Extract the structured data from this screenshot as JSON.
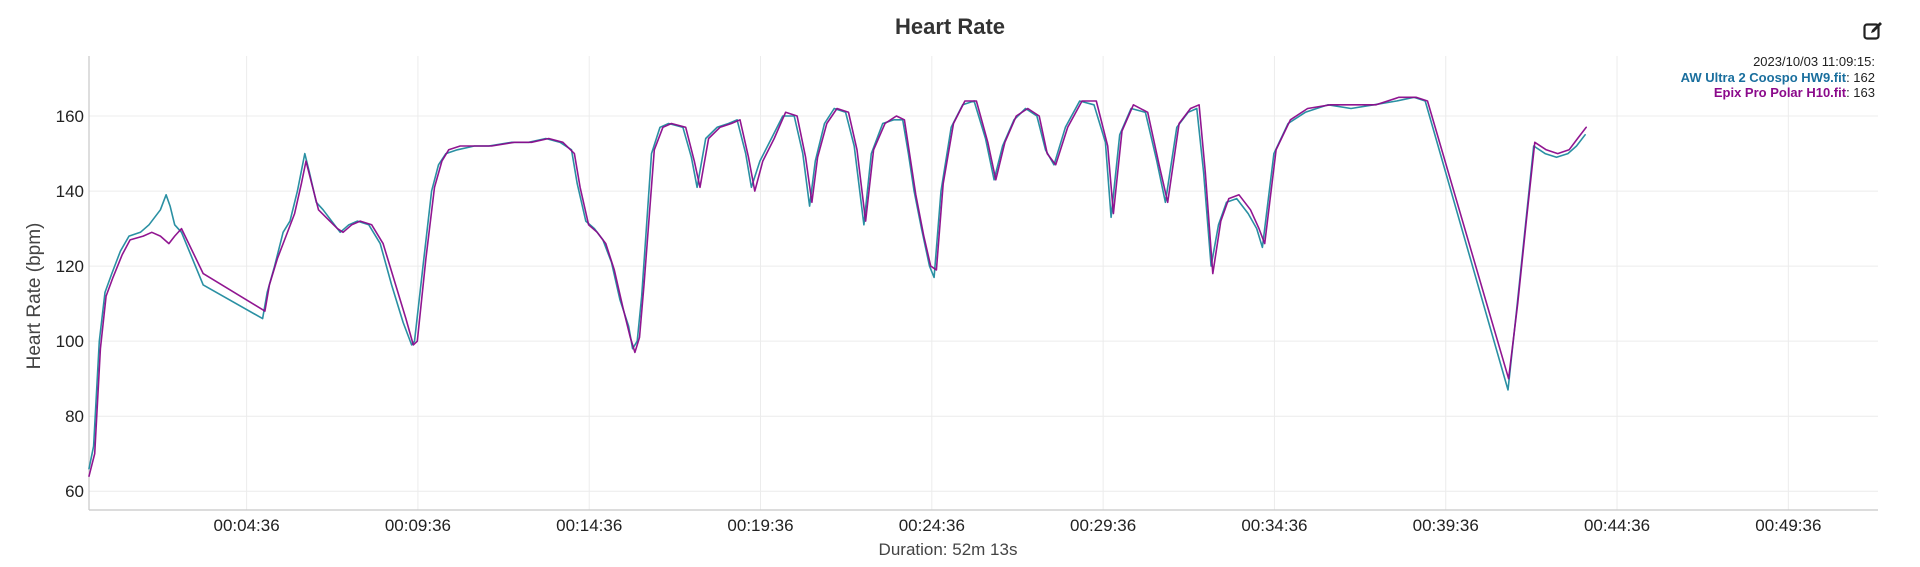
{
  "chart_data": {
    "type": "line",
    "title": "Heart Rate",
    "ylabel": "Heart Rate (bpm)",
    "xlabel": "Duration: 52m 13s",
    "duration_seconds": 3133,
    "xlim_seconds": [
      0,
      3133
    ],
    "ylim": [
      55,
      176
    ],
    "y_ticks": [
      60,
      80,
      100,
      120,
      140,
      160
    ],
    "x_ticks": [
      {
        "seconds": 276,
        "label": "00:04:36"
      },
      {
        "seconds": 576,
        "label": "00:09:36"
      },
      {
        "seconds": 876,
        "label": "00:14:36"
      },
      {
        "seconds": 1176,
        "label": "00:19:36"
      },
      {
        "seconds": 1476,
        "label": "00:24:36"
      },
      {
        "seconds": 1776,
        "label": "00:29:36"
      },
      {
        "seconds": 2076,
        "label": "00:34:36"
      },
      {
        "seconds": 2376,
        "label": "00:39:36"
      },
      {
        "seconds": 2676,
        "label": "00:44:36"
      },
      {
        "seconds": 2976,
        "label": "00:49:36"
      }
    ],
    "grid": true,
    "legend": {
      "placement": "top-right",
      "timestamp": "2023/10/03 11:09:15:",
      "items": [
        {
          "name": "AW Ultra 2 Coospo HW9.fit",
          "value": "162",
          "color": "#1a6f9e"
        },
        {
          "name": "Epix Pro Polar H10.fit",
          "value": "163",
          "color": "#8b0a8b"
        }
      ]
    },
    "series": [
      {
        "name": "AW Ultra 2 Coospo HW9.fit",
        "color": "#1f8a9e",
        "points": [
          [
            0,
            66
          ],
          [
            8,
            72
          ],
          [
            18,
            100
          ],
          [
            28,
            113
          ],
          [
            40,
            118
          ],
          [
            55,
            124
          ],
          [
            70,
            128
          ],
          [
            90,
            129
          ],
          [
            105,
            131
          ],
          [
            115,
            133
          ],
          [
            125,
            135
          ],
          [
            135,
            139
          ],
          [
            142,
            136
          ],
          [
            150,
            131
          ],
          [
            162,
            129
          ],
          [
            200,
            115
          ],
          [
            304,
            106
          ],
          [
            312,
            113
          ],
          [
            325,
            120
          ],
          [
            340,
            129
          ],
          [
            352,
            132
          ],
          [
            365,
            140
          ],
          [
            378,
            150
          ],
          [
            386,
            145
          ],
          [
            398,
            137
          ],
          [
            410,
            135
          ],
          [
            430,
            131
          ],
          [
            440,
            129
          ],
          [
            455,
            131
          ],
          [
            470,
            132
          ],
          [
            490,
            131
          ],
          [
            510,
            126
          ],
          [
            530,
            115
          ],
          [
            550,
            105
          ],
          [
            565,
            99
          ],
          [
            570,
            100
          ],
          [
            585,
            120
          ],
          [
            600,
            140
          ],
          [
            612,
            147
          ],
          [
            625,
            150
          ],
          [
            645,
            151
          ],
          [
            675,
            152
          ],
          [
            700,
            152
          ],
          [
            740,
            153
          ],
          [
            770,
            153
          ],
          [
            800,
            154
          ],
          [
            825,
            153
          ],
          [
            845,
            151
          ],
          [
            855,
            142
          ],
          [
            870,
            132
          ],
          [
            885,
            130
          ],
          [
            900,
            127
          ],
          [
            915,
            121
          ],
          [
            930,
            111
          ],
          [
            945,
            104
          ],
          [
            952,
            98
          ],
          [
            960,
            100
          ],
          [
            968,
            112
          ],
          [
            985,
            150
          ],
          [
            1000,
            157
          ],
          [
            1015,
            158
          ],
          [
            1040,
            157
          ],
          [
            1055,
            149
          ],
          [
            1065,
            141
          ],
          [
            1080,
            154
          ],
          [
            1100,
            157
          ],
          [
            1120,
            158
          ],
          [
            1135,
            159
          ],
          [
            1150,
            150
          ],
          [
            1160,
            141
          ],
          [
            1175,
            148
          ],
          [
            1195,
            154
          ],
          [
            1215,
            160
          ],
          [
            1235,
            160
          ],
          [
            1250,
            150
          ],
          [
            1262,
            136
          ],
          [
            1272,
            148
          ],
          [
            1288,
            158
          ],
          [
            1305,
            162
          ],
          [
            1325,
            161
          ],
          [
            1340,
            152
          ],
          [
            1357,
            131
          ],
          [
            1370,
            150
          ],
          [
            1390,
            158
          ],
          [
            1410,
            159
          ],
          [
            1425,
            159
          ],
          [
            1435,
            150
          ],
          [
            1445,
            140
          ],
          [
            1458,
            130
          ],
          [
            1472,
            120
          ],
          [
            1480,
            117
          ],
          [
            1492,
            140
          ],
          [
            1510,
            157
          ],
          [
            1530,
            163
          ],
          [
            1550,
            164
          ],
          [
            1570,
            154
          ],
          [
            1585,
            143
          ],
          [
            1600,
            152
          ],
          [
            1620,
            159
          ],
          [
            1640,
            162
          ],
          [
            1660,
            160
          ],
          [
            1675,
            151
          ],
          [
            1690,
            147
          ],
          [
            1710,
            157
          ],
          [
            1735,
            164
          ],
          [
            1760,
            163
          ],
          [
            1780,
            153
          ],
          [
            1790,
            133
          ],
          [
            1805,
            155
          ],
          [
            1825,
            162
          ],
          [
            1850,
            161
          ],
          [
            1870,
            148
          ],
          [
            1885,
            137
          ],
          [
            1905,
            157
          ],
          [
            1925,
            161
          ],
          [
            1940,
            162
          ],
          [
            1952,
            145
          ],
          [
            1965,
            120
          ],
          [
            1978,
            131
          ],
          [
            1992,
            137
          ],
          [
            2010,
            138
          ],
          [
            2030,
            134
          ],
          [
            2045,
            130
          ],
          [
            2055,
            125
          ],
          [
            2075,
            150
          ],
          [
            2100,
            158
          ],
          [
            2130,
            161
          ],
          [
            2170,
            163
          ],
          [
            2210,
            162
          ],
          [
            2250,
            163
          ],
          [
            2290,
            164
          ],
          [
            2320,
            165
          ],
          [
            2340,
            164
          ],
          [
            2485,
            87
          ],
          [
            2500,
            108
          ],
          [
            2515,
            130
          ],
          [
            2530,
            152
          ],
          [
            2550,
            150
          ],
          [
            2570,
            149
          ],
          [
            2590,
            150
          ],
          [
            2605,
            152
          ],
          [
            2620,
            155
          ]
        ]
      },
      {
        "name": "Epix Pro Polar H10.fit",
        "color": "#8b0a8b",
        "points": [
          [
            0,
            64
          ],
          [
            10,
            70
          ],
          [
            20,
            98
          ],
          [
            30,
            112
          ],
          [
            42,
            117
          ],
          [
            58,
            123
          ],
          [
            72,
            127
          ],
          [
            95,
            128
          ],
          [
            110,
            129
          ],
          [
            125,
            128
          ],
          [
            140,
            126
          ],
          [
            150,
            128
          ],
          [
            162,
            130
          ],
          [
            200,
            118
          ],
          [
            308,
            108
          ],
          [
            316,
            115
          ],
          [
            330,
            122
          ],
          [
            345,
            128
          ],
          [
            360,
            134
          ],
          [
            372,
            142
          ],
          [
            380,
            148
          ],
          [
            390,
            142
          ],
          [
            402,
            135
          ],
          [
            415,
            133
          ],
          [
            435,
            130
          ],
          [
            445,
            129
          ],
          [
            460,
            131
          ],
          [
            475,
            132
          ],
          [
            495,
            131
          ],
          [
            515,
            126
          ],
          [
            535,
            116
          ],
          [
            555,
            106
          ],
          [
            568,
            99
          ],
          [
            575,
            100
          ],
          [
            590,
            122
          ],
          [
            605,
            141
          ],
          [
            618,
            148
          ],
          [
            630,
            151
          ],
          [
            650,
            152
          ],
          [
            680,
            152
          ],
          [
            705,
            152
          ],
          [
            745,
            153
          ],
          [
            775,
            153
          ],
          [
            805,
            154
          ],
          [
            830,
            153
          ],
          [
            850,
            150
          ],
          [
            860,
            141
          ],
          [
            875,
            131
          ],
          [
            890,
            129
          ],
          [
            905,
            126
          ],
          [
            920,
            119
          ],
          [
            935,
            109
          ],
          [
            948,
            101
          ],
          [
            956,
            97
          ],
          [
            964,
            101
          ],
          [
            972,
            115
          ],
          [
            990,
            151
          ],
          [
            1005,
            157
          ],
          [
            1020,
            158
          ],
          [
            1045,
            157
          ],
          [
            1060,
            148
          ],
          [
            1070,
            141
          ],
          [
            1085,
            154
          ],
          [
            1105,
            157
          ],
          [
            1125,
            158
          ],
          [
            1140,
            159
          ],
          [
            1155,
            149
          ],
          [
            1166,
            140
          ],
          [
            1180,
            148
          ],
          [
            1200,
            154
          ],
          [
            1220,
            161
          ],
          [
            1240,
            160
          ],
          [
            1255,
            149
          ],
          [
            1266,
            137
          ],
          [
            1276,
            149
          ],
          [
            1292,
            158
          ],
          [
            1310,
            162
          ],
          [
            1330,
            161
          ],
          [
            1345,
            151
          ],
          [
            1360,
            132
          ],
          [
            1374,
            151
          ],
          [
            1394,
            158
          ],
          [
            1414,
            160
          ],
          [
            1428,
            159
          ],
          [
            1438,
            149
          ],
          [
            1448,
            139
          ],
          [
            1462,
            128
          ],
          [
            1474,
            120
          ],
          [
            1484,
            119
          ],
          [
            1496,
            142
          ],
          [
            1514,
            158
          ],
          [
            1534,
            164
          ],
          [
            1554,
            164
          ],
          [
            1574,
            153
          ],
          [
            1588,
            143
          ],
          [
            1604,
            153
          ],
          [
            1624,
            160
          ],
          [
            1644,
            162
          ],
          [
            1664,
            160
          ],
          [
            1678,
            150
          ],
          [
            1693,
            147
          ],
          [
            1714,
            157
          ],
          [
            1739,
            164
          ],
          [
            1764,
            164
          ],
          [
            1784,
            152
          ],
          [
            1794,
            134
          ],
          [
            1809,
            156
          ],
          [
            1829,
            163
          ],
          [
            1854,
            161
          ],
          [
            1874,
            147
          ],
          [
            1889,
            137
          ],
          [
            1909,
            158
          ],
          [
            1929,
            162
          ],
          [
            1944,
            163
          ],
          [
            1955,
            145
          ],
          [
            1968,
            118
          ],
          [
            1982,
            132
          ],
          [
            1996,
            138
          ],
          [
            2014,
            139
          ],
          [
            2034,
            135
          ],
          [
            2049,
            130
          ],
          [
            2059,
            126
          ],
          [
            2079,
            151
          ],
          [
            2104,
            159
          ],
          [
            2134,
            162
          ],
          [
            2174,
            163
          ],
          [
            2214,
            163
          ],
          [
            2254,
            163
          ],
          [
            2294,
            165
          ],
          [
            2324,
            165
          ],
          [
            2344,
            164
          ],
          [
            2486,
            90
          ],
          [
            2502,
            110
          ],
          [
            2517,
            132
          ],
          [
            2532,
            153
          ],
          [
            2552,
            151
          ],
          [
            2572,
            150
          ],
          [
            2592,
            151
          ],
          [
            2607,
            154
          ],
          [
            2622,
            157
          ]
        ]
      }
    ]
  }
}
